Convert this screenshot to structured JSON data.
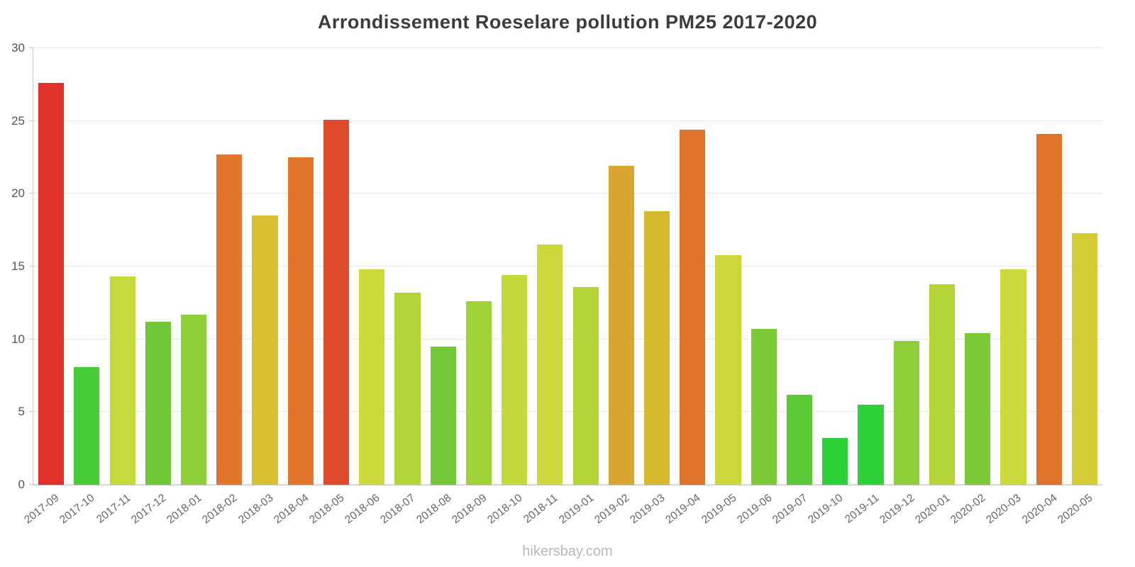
{
  "chart_data": {
    "type": "bar",
    "title": "Arrondissement Roeselare pollution PM25 2017-2020",
    "xlabel": "",
    "ylabel": "",
    "ylim": [
      0,
      30
    ],
    "yticks": [
      0,
      5,
      10,
      15,
      20,
      25,
      30
    ],
    "grid": "horizontal",
    "legend": "none",
    "categories": [
      "2017-09",
      "2017-10",
      "2017-11",
      "2017-12",
      "2018-01",
      "2018-02",
      "2018-03",
      "2018-04",
      "2018-05",
      "2018-06",
      "2018-07",
      "2018-08",
      "2018-09",
      "2018-10",
      "2018-11",
      "2019-01",
      "2019-02",
      "2019-03",
      "2019-04",
      "2019-05",
      "2019-06",
      "2019-07",
      "2019-10",
      "2019-11",
      "2019-12",
      "2020-01",
      "2020-02",
      "2020-03",
      "2020-04",
      "2020-05"
    ],
    "values": [
      27.6,
      8.1,
      14.3,
      11.2,
      11.7,
      22.7,
      18.5,
      22.5,
      25.1,
      14.8,
      13.2,
      9.5,
      12.6,
      14.4,
      16.5,
      13.6,
      21.9,
      18.8,
      24.4,
      15.8,
      10.7,
      6.2,
      3.2,
      5.5,
      9.9,
      13.8,
      10.4,
      14.8,
      24.1,
      17.3
    ],
    "colors": [
      "#e13229",
      "#46cb36",
      "#c6da3b",
      "#6fc738",
      "#8ccf38",
      "#e1752c",
      "#d9c032",
      "#e1752c",
      "#e04b2d",
      "#cbd93b",
      "#b1d438",
      "#74c938",
      "#9ed236",
      "#c4da3a",
      "#ced83a",
      "#b3d538",
      "#d8a52e",
      "#d7b930",
      "#e0732c",
      "#cdd739",
      "#7dca37",
      "#5bc837",
      "#2ed138",
      "#2ed138",
      "#8ccf38",
      "#b5d638",
      "#7dca37",
      "#cbd93b",
      "#e0732c",
      "#d4cc35"
    ],
    "axis_color": "#c9c9c9",
    "gridline_color": "#e6e6e6",
    "tick_label_color": "#666666"
  },
  "footer": {
    "watermark": "hikersbay.com"
  }
}
